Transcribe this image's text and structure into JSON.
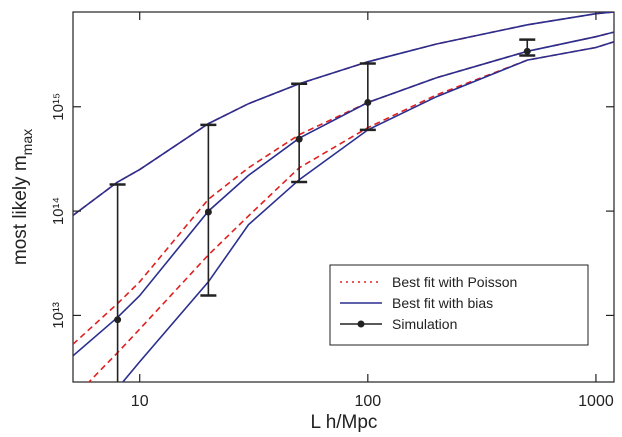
{
  "chart_data": {
    "type": "line",
    "x_label": "L h/Mpc",
    "y_label": {
      "text": "most likely m",
      "subscript": "max"
    },
    "log_x": true,
    "log_y": true,
    "xlim": [
      5.1,
      1200
    ],
    "ylim": [
      2300000000000.0,
      8100000000000000.0
    ],
    "xticks": [
      10,
      100,
      1000
    ],
    "yticks": [
      {
        "value": 10000000000000.0,
        "label": "10¹³"
      },
      {
        "value": 100000000000000.0,
        "label": "10¹⁴"
      },
      {
        "value": 1000000000000000.0,
        "label": "10¹⁵"
      }
    ],
    "legend": "lower right",
    "x": [
      5.1,
      8,
      10,
      20,
      30,
      50,
      100,
      200,
      500,
      1000,
      1200
    ],
    "series": [
      {
        "name": "Best fit with Poisson",
        "color": "#e02020",
        "style": "dashed",
        "lines": [
          [
            91000000000000.0,
            190000000000000.0,
            250000000000000.0,
            690000000000000.0,
            1070000000000000.0,
            1660000000000000.0,
            2700000000000000.0,
            4000000000000000.0,
            6100000000000000.0,
            7800000000000000.0,
            8100000000000000.0
          ],
          [
            5300000000000.0,
            13000000000000.0,
            21000000000000.0,
            130000000000000.0,
            260000000000000.0,
            540000000000000.0,
            1100000000000000.0,
            1900000000000000.0,
            3400000000000000.0,
            4700000000000000.0,
            5200000000000000.0
          ],
          [
            1600000000000.0,
            4400000000000.0,
            7400000000000.0,
            38000000000000.0,
            90000000000000.0,
            260000000000000.0,
            630000000000000.0,
            1300000000000000.0,
            2800000000000000.0,
            3700000000000000.0,
            4200000000000000.0
          ]
        ]
      },
      {
        "name": "Best fit with bias",
        "color": "#2a2f8f",
        "style": "solid",
        "lines": [
          [
            91000000000000.0,
            190000000000000.0,
            250000000000000.0,
            690000000000000.0,
            1070000000000000.0,
            1660000000000000.0,
            2700000000000000.0,
            4000000000000000.0,
            6100000000000000.0,
            7800000000000000.0,
            8100000000000000.0
          ],
          [
            4100000000000.0,
            9600000000000.0,
            15500000000000.0,
            100000000000000.0,
            220000000000000.0,
            500000000000000.0,
            1100000000000000.0,
            1900000000000000.0,
            3400000000000000.0,
            4700000000000000.0,
            5200000000000000.0
          ],
          [
            700000000000.0,
            2000000000000.0,
            3600000000000.0,
            21000000000000.0,
            74000000000000.0,
            200000000000000.0,
            600000000000000.0,
            1250000000000000.0,
            2800000000000000.0,
            3700000000000000.0,
            4200000000000000.0
          ]
        ]
      }
    ],
    "simulation": {
      "name": "Simulation",
      "color": "#222222",
      "x": [
        8,
        20,
        50,
        100,
        500
      ],
      "values": [
        9100000000000.0,
        98000000000000.0,
        490000000000000.0,
        1100000000000000.0,
        3400000000000000.0
      ],
      "lower": [
        1000000000000.0,
        15500000000000.0,
        190000000000000.0,
        600000000000000.0,
        3100000000000000.0
      ],
      "upper": [
        180000000000000.0,
        670000000000000.0,
        1660000000000000.0,
        2600000000000000.0,
        4400000000000000.0
      ]
    }
  }
}
